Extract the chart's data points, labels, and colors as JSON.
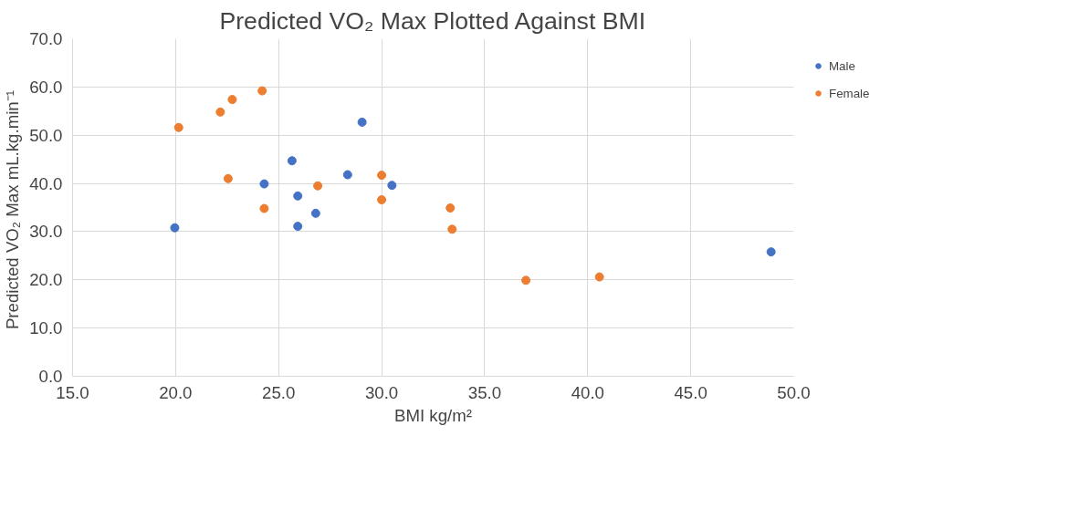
{
  "chart_data": {
    "type": "scatter",
    "title": "Predicted VO₂ Max Plotted Against BMI",
    "xlabel": "BMI kg/m²",
    "ylabel": "Predicted VO₂ Max  mL.kg.min⁻¹",
    "series": [
      {
        "name": "Male",
        "color": "#4472c4",
        "x": [
          19.96,
          24.3,
          25.65,
          25.93,
          25.93,
          26.8,
          28.35,
          29.05,
          30.5,
          48.9
        ],
        "values": [
          30.8,
          39.9,
          44.7,
          37.4,
          31.1,
          33.8,
          41.8,
          52.7,
          39.6,
          25.8
        ]
      },
      {
        "name": "Female",
        "color": "#ed7d31",
        "x": [
          20.15,
          22.17,
          22.75,
          24.2,
          22.55,
          24.3,
          26.9,
          30.0,
          30.0,
          33.33,
          33.42,
          37.0,
          40.57
        ],
        "values": [
          51.6,
          54.8,
          57.4,
          59.2,
          41.0,
          34.8,
          39.5,
          41.7,
          36.6,
          34.9,
          30.5,
          19.9,
          20.6
        ]
      }
    ],
    "xlim": [
      15,
      50
    ],
    "ylim": [
      0,
      70
    ],
    "xticks": [
      {
        "value": 15,
        "label": "15.0"
      },
      {
        "value": 20,
        "label": "20.0"
      },
      {
        "value": 25,
        "label": "25.0"
      },
      {
        "value": 30,
        "label": "30.0"
      },
      {
        "value": 35,
        "label": "35.0"
      },
      {
        "value": 40,
        "label": "40.0"
      },
      {
        "value": 45,
        "label": "45.0"
      },
      {
        "value": 50,
        "label": "50.0"
      }
    ],
    "yticks": [
      {
        "value": 0,
        "label": "0.0"
      },
      {
        "value": 10,
        "label": "10.0"
      },
      {
        "value": 20,
        "label": "20.0"
      },
      {
        "value": 30,
        "label": "30.0"
      },
      {
        "value": 40,
        "label": "40.0"
      },
      {
        "value": 50,
        "label": "50.0"
      },
      {
        "value": 60,
        "label": "60.0"
      },
      {
        "value": 70,
        "label": "70.0"
      }
    ],
    "grid": true,
    "legend": "right",
    "marker": "circle"
  }
}
